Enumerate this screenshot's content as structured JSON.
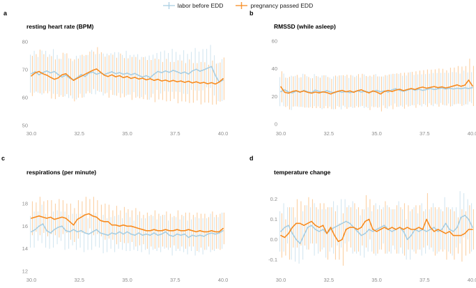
{
  "legend": {
    "items": [
      {
        "label": "labor before EDD",
        "color": "#a8cee2"
      },
      {
        "label": "pregnancy passed EDD",
        "color": "#f78b1f"
      }
    ]
  },
  "chart_data": [
    {
      "id": "a",
      "panel_label": "a",
      "type": "line",
      "title": "resting heart rate (BPM)",
      "xlabel": "",
      "ylabel": "",
      "x_start": 30,
      "x_step": 0.2,
      "xlim": [
        30,
        40
      ],
      "ylim": [
        48.8,
        81.0
      ],
      "xtick_values": [
        30,
        32.5,
        35,
        37.5,
        40
      ],
      "xtick_labels": [
        "30.0",
        "32.5",
        "35.0",
        "37.5",
        "40.0"
      ],
      "ytick_values": [
        80,
        70,
        60,
        50
      ],
      "ytick_labels": [
        "80",
        "70",
        "60",
        "50"
      ],
      "error_bars": "mean plus-minus sd",
      "series": [
        {
          "name": "labor before EDD",
          "color": "#a8cee2",
          "bar_opacity": 0.55,
          "mean": [
            68.6,
            69.3,
            68.2,
            69.0,
            69.6,
            68.9,
            69.4,
            68.3,
            67.4,
            68.1,
            67.0,
            66.4,
            67.2,
            68.3,
            67.6,
            68.8,
            69.2,
            68.4,
            68.9,
            68.3,
            68.8,
            69.3,
            68.6,
            69.0,
            68.4,
            68.8,
            68.2,
            68.7,
            68.0,
            67.4,
            67.9,
            67.2,
            68.4,
            69.4,
            69.0,
            69.6,
            69.1,
            69.8,
            69.3,
            68.7,
            69.2,
            68.5,
            69.6,
            70.2,
            69.5,
            70.0,
            70.6,
            71.2,
            68.0,
            65.6,
            66.3
          ],
          "sd": [
            6.8,
            7.5,
            6.4,
            7.9,
            7.2,
            6.6,
            8.0,
            7.0,
            6.5,
            7.6,
            7.1,
            6.7,
            7.8,
            6.9,
            7.4,
            6.5,
            7.9,
            7.2,
            6.8,
            7.5,
            7.0,
            6.6,
            7.7,
            7.3,
            6.9,
            8.0,
            7.1,
            6.7,
            7.6,
            7.2,
            6.8,
            7.9,
            7.0,
            6.6,
            7.5,
            7.3,
            6.9,
            7.7,
            7.1,
            6.7,
            7.8,
            7.2,
            6.8,
            7.6,
            7.0,
            7.4,
            6.9,
            7.7,
            7.2,
            6.8,
            7.5
          ]
        },
        {
          "name": "pregnancy passed EDD",
          "color": "#f78b1f",
          "bar_opacity": 0.45,
          "mean": [
            67.8,
            68.9,
            69.4,
            68.6,
            68.1,
            67.3,
            66.6,
            67.1,
            68.2,
            68.6,
            67.4,
            66.2,
            67.0,
            67.7,
            68.4,
            69.1,
            69.8,
            70.3,
            69.2,
            68.1,
            67.6,
            68.2,
            67.5,
            67.9,
            67.2,
            67.6,
            66.9,
            67.3,
            66.7,
            67.0,
            66.4,
            66.8,
            66.2,
            66.6,
            66.0,
            66.3,
            65.8,
            66.2,
            65.7,
            66.0,
            65.5,
            65.9,
            65.3,
            65.7,
            65.2,
            65.5,
            65.0,
            65.4,
            64.9,
            65.6,
            66.8
          ],
          "sd": [
            7.2,
            6.7,
            7.8,
            7.0,
            6.5,
            7.6,
            7.1,
            6.8,
            7.9,
            7.3,
            6.6,
            7.5,
            7.0,
            7.7,
            6.9,
            7.4,
            6.7,
            7.8,
            7.1,
            6.6,
            7.6,
            7.2,
            6.8,
            7.9,
            7.0,
            6.5,
            7.7,
            7.3,
            6.9,
            7.5,
            7.1,
            6.7,
            7.8,
            7.2,
            6.8,
            7.6,
            7.0,
            6.6,
            7.7,
            7.3,
            6.9,
            7.8,
            7.1,
            6.7,
            7.6,
            7.2,
            6.8,
            7.9,
            7.3,
            7.0,
            7.6
          ]
        }
      ]
    },
    {
      "id": "b",
      "panel_label": "b",
      "type": "line",
      "title": "RMSSD (while asleep)",
      "xlabel": "",
      "ylabel": "",
      "x_start": 30,
      "x_step": 0.2,
      "xlim": [
        30,
        40
      ],
      "ylim": [
        -3.5,
        61.5
      ],
      "xtick_values": [
        30,
        32.5,
        35,
        37.5,
        40
      ],
      "xtick_labels": [
        "30.0",
        "32.5",
        "35.0",
        "37.5",
        "40.0"
      ],
      "ytick_values": [
        60,
        40,
        20,
        0
      ],
      "ytick_labels": [
        "60",
        "40",
        "20",
        "0"
      ],
      "error_bars": "mean plus-minus sd",
      "series": [
        {
          "name": "labor before EDD",
          "color": "#a8cee2",
          "bar_opacity": 0.55,
          "mean": [
            23.5,
            24.8,
            23.2,
            22.6,
            23.9,
            23.0,
            24.4,
            23.4,
            22.8,
            24.6,
            23.6,
            23.0,
            24.2,
            23.2,
            22.6,
            23.8,
            23.0,
            23.6,
            22.8,
            23.4,
            24.0,
            23.2,
            23.8,
            23.0,
            23.6,
            24.4,
            23.4,
            24.0,
            23.2,
            24.8,
            25.6,
            24.4,
            23.8,
            24.6,
            25.4,
            24.6,
            25.2,
            24.4,
            25.0,
            25.8,
            25.0,
            25.6,
            26.2,
            25.4,
            26.0,
            25.4,
            26.0,
            25.6,
            26.2,
            25.8,
            26.4
          ],
          "sd": [
            10.5,
            11.8,
            10.2,
            12.4,
            11.0,
            10.6,
            12.0,
            11.3,
            10.4,
            11.6,
            10.8,
            12.2,
            11.1,
            10.5,
            11.9,
            10.7,
            12.3,
            11.2,
            10.6,
            11.7,
            11.0,
            10.4,
            12.1,
            11.4,
            10.8,
            11.8,
            11.1,
            10.5,
            12.0,
            11.3,
            10.7,
            11.9,
            11.2,
            10.6,
            12.2,
            11.0,
            10.8,
            11.6,
            11.2,
            10.7,
            12.0,
            11.4,
            10.9,
            11.8,
            11.1,
            12.3,
            11.5,
            11.0,
            12.5,
            11.6,
            11.2
          ]
        },
        {
          "name": "pregnancy passed EDD",
          "color": "#f78b1f",
          "bar_opacity": 0.45,
          "mean": [
            27.0,
            23.0,
            22.4,
            23.6,
            24.2,
            23.2,
            24.0,
            23.0,
            22.4,
            23.2,
            22.6,
            23.4,
            22.8,
            21.8,
            23.0,
            23.8,
            24.4,
            23.4,
            24.0,
            23.0,
            24.2,
            24.8,
            23.6,
            22.6,
            24.0,
            23.2,
            21.8,
            23.6,
            24.4,
            23.6,
            24.6,
            25.2,
            24.2,
            25.0,
            25.8,
            25.0,
            26.2,
            26.8,
            26.0,
            26.6,
            27.2,
            26.4,
            27.0,
            26.2,
            26.8,
            27.6,
            28.4,
            27.4,
            28.2,
            31.8,
            27.6
          ],
          "sd": [
            11.2,
            10.6,
            11.8,
            10.9,
            11.4,
            10.7,
            12.0,
            11.1,
            10.8,
            11.6,
            11.0,
            11.9,
            11.3,
            10.9,
            12.1,
            11.4,
            11.0,
            12.3,
            11.5,
            11.1,
            12.0,
            11.6,
            11.2,
            12.4,
            11.7,
            11.3,
            12.6,
            11.9,
            11.5,
            12.8,
            12.1,
            11.8,
            13.0,
            12.3,
            12.0,
            13.2,
            12.5,
            12.2,
            13.5,
            12.8,
            12.4,
            13.8,
            13.0,
            12.7,
            14.0,
            13.3,
            13.6,
            14.2,
            13.8,
            15.5,
            14.5
          ]
        }
      ]
    },
    {
      "id": "c",
      "panel_label": "c",
      "type": "line",
      "title": "respirations (per minute)",
      "xlabel": "",
      "ylabel": "",
      "x_start": 30,
      "x_step": 0.2,
      "xlim": [
        30,
        40
      ],
      "ylim": [
        11.7,
        19.6
      ],
      "xtick_values": [
        30,
        32.5,
        35,
        37.5,
        40
      ],
      "xtick_labels": [
        "30.0",
        "32.5",
        "35.0",
        "37.5",
        "40.0"
      ],
      "ytick_values": [
        18,
        16,
        14,
        12
      ],
      "ytick_labels": [
        "18",
        "16",
        "14",
        "12"
      ],
      "error_bars": "mean plus-minus sd",
      "series": [
        {
          "name": "labor before EDD",
          "color": "#a8cee2",
          "bar_opacity": 0.55,
          "mean": [
            15.5,
            15.7,
            16.0,
            16.2,
            15.6,
            15.4,
            15.7,
            15.9,
            16.0,
            15.6,
            15.5,
            15.7,
            15.5,
            15.6,
            15.4,
            15.3,
            15.5,
            15.7,
            15.4,
            15.3,
            15.2,
            15.4,
            15.3,
            15.5,
            15.3,
            15.5,
            15.3,
            15.2,
            15.4,
            15.2,
            15.3,
            15.2,
            15.4,
            15.2,
            15.3,
            15.5,
            15.2,
            15.1,
            15.3,
            15.2,
            15.3,
            15.0,
            15.2,
            15.1,
            15.2,
            15.1,
            15.3,
            15.4,
            15.3,
            15.4,
            15.6
          ],
          "sd": [
            1.4,
            1.6,
            1.3,
            1.7,
            1.5,
            1.4,
            1.6,
            1.5,
            1.3,
            1.7,
            1.5,
            1.4,
            1.6,
            1.5,
            1.7,
            1.4,
            1.6,
            1.5,
            1.3,
            1.7,
            1.5,
            1.4,
            1.6,
            1.5,
            1.4,
            1.7,
            1.5,
            1.3,
            1.6,
            1.5,
            1.4,
            1.7,
            1.5,
            1.4,
            1.6,
            1.5,
            1.3,
            1.7,
            1.5,
            1.4,
            1.6,
            1.5,
            1.4,
            1.7,
            1.5,
            1.6,
            1.4,
            1.7,
            1.5,
            1.4,
            1.6
          ]
        },
        {
          "name": "pregnancy passed EDD",
          "color": "#f78b1f",
          "bar_opacity": 0.45,
          "mean": [
            16.7,
            16.8,
            16.9,
            16.8,
            16.7,
            16.8,
            16.6,
            16.7,
            16.8,
            16.7,
            16.4,
            16.1,
            16.6,
            16.8,
            17.0,
            17.1,
            16.9,
            16.8,
            16.5,
            16.4,
            16.4,
            16.1,
            16.1,
            16.0,
            16.1,
            16.0,
            16.0,
            15.9,
            15.8,
            15.7,
            15.6,
            15.6,
            15.7,
            15.6,
            15.6,
            15.7,
            15.6,
            15.6,
            15.7,
            15.6,
            15.6,
            15.7,
            15.6,
            15.5,
            15.6,
            15.5,
            15.5,
            15.6,
            15.5,
            15.5,
            15.8
          ],
          "sd": [
            1.5,
            1.3,
            1.7,
            1.4,
            1.6,
            1.5,
            1.4,
            1.7,
            1.5,
            1.3,
            1.6,
            1.5,
            1.7,
            1.4,
            1.6,
            1.3,
            1.7,
            1.5,
            1.4,
            1.6,
            1.5,
            1.3,
            1.7,
            1.4,
            1.6,
            1.5,
            1.4,
            1.7,
            1.5,
            1.3,
            1.6,
            1.4,
            1.7,
            1.5,
            1.4,
            1.6,
            1.5,
            1.3,
            1.7,
            1.4,
            1.6,
            1.5,
            1.4,
            1.7,
            1.5,
            1.6,
            1.3,
            1.7,
            1.5,
            1.6,
            1.4
          ]
        }
      ]
    },
    {
      "id": "d",
      "panel_label": "d",
      "type": "line",
      "title": "temperature change",
      "xlabel": "",
      "ylabel": "",
      "x_start": 30,
      "x_step": 0.2,
      "xlim": [
        30,
        40
      ],
      "ylim": [
        -0.175,
        0.268
      ],
      "xtick_values": [
        30,
        32.5,
        35,
        37.5,
        40
      ],
      "xtick_labels": [
        "30.0",
        "32.5",
        "35.0",
        "37.5",
        "40.0"
      ],
      "ytick_values": [
        0.2,
        0.1,
        0.0,
        -0.1
      ],
      "ytick_labels": [
        "0.2",
        "0.1",
        "0.0",
        "-0.1"
      ],
      "error_bars": "mean plus-minus sd",
      "series": [
        {
          "name": "labor before EDD",
          "color": "#a8cee2",
          "bar_opacity": 0.55,
          "mean": [
            0.04,
            0.06,
            0.07,
            0.03,
            0.0,
            -0.02,
            0.02,
            0.06,
            0.07,
            0.05,
            0.04,
            0.05,
            0.03,
            0.05,
            0.06,
            0.07,
            0.08,
            0.09,
            0.08,
            0.06,
            0.04,
            0.02,
            0.03,
            0.05,
            0.04,
            0.05,
            0.06,
            0.07,
            0.05,
            0.04,
            0.05,
            0.06,
            0.04,
            0.0,
            0.02,
            0.05,
            0.04,
            0.05,
            0.04,
            0.05,
            0.06,
            0.04,
            0.05,
            0.08,
            0.05,
            0.04,
            0.06,
            0.11,
            0.12,
            0.1,
            0.06
          ],
          "sd": [
            0.1,
            0.12,
            0.09,
            0.13,
            0.11,
            0.1,
            0.12,
            0.11,
            0.09,
            0.13,
            0.11,
            0.1,
            0.12,
            0.11,
            0.13,
            0.1,
            0.12,
            0.11,
            0.09,
            0.13,
            0.11,
            0.1,
            0.12,
            0.11,
            0.1,
            0.13,
            0.11,
            0.09,
            0.12,
            0.11,
            0.1,
            0.13,
            0.11,
            0.1,
            0.12,
            0.11,
            0.09,
            0.13,
            0.11,
            0.1,
            0.12,
            0.11,
            0.1,
            0.13,
            0.11,
            0.12,
            0.1,
            0.13,
            0.11,
            0.1,
            0.12
          ]
        },
        {
          "name": "pregnancy passed EDD",
          "color": "#f78b1f",
          "bar_opacity": 0.45,
          "mean": [
            0.02,
            0.01,
            0.03,
            0.06,
            0.08,
            0.08,
            0.07,
            0.08,
            0.09,
            0.07,
            0.06,
            0.07,
            0.03,
            0.06,
            0.02,
            -0.01,
            0.0,
            0.05,
            0.06,
            0.06,
            0.05,
            0.06,
            0.09,
            0.1,
            0.05,
            0.04,
            0.05,
            0.06,
            0.05,
            0.06,
            0.05,
            0.06,
            0.05,
            0.06,
            0.05,
            0.05,
            0.06,
            0.05,
            0.1,
            0.06,
            0.04,
            0.05,
            0.04,
            0.03,
            0.04,
            0.02,
            0.02,
            0.02,
            0.03,
            0.05,
            0.05
          ],
          "sd": [
            0.11,
            0.09,
            0.13,
            0.1,
            0.12,
            0.11,
            0.1,
            0.13,
            0.11,
            0.09,
            0.12,
            0.11,
            0.13,
            0.1,
            0.12,
            0.09,
            0.13,
            0.11,
            0.1,
            0.12,
            0.11,
            0.09,
            0.13,
            0.1,
            0.12,
            0.11,
            0.1,
            0.13,
            0.11,
            0.09,
            0.12,
            0.1,
            0.13,
            0.11,
            0.1,
            0.12,
            0.11,
            0.09,
            0.13,
            0.1,
            0.12,
            0.11,
            0.1,
            0.13,
            0.11,
            0.12,
            0.09,
            0.13,
            0.11,
            0.12,
            0.1
          ]
        }
      ]
    }
  ]
}
